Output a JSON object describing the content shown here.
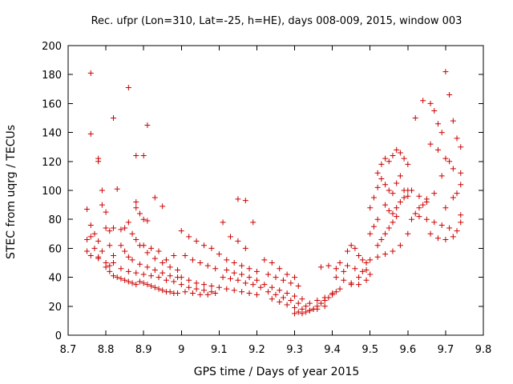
{
  "chart_data": {
    "type": "scatter",
    "title": "Rec. ufpr (Lon=310, Lat=-25, h=HE), days 008-009, 2015, window 003",
    "xlabel": "GPS time / Days of year 2015",
    "ylabel": "STEC from uqrg / TECUs",
    "xlim": [
      8.7,
      9.8
    ],
    "ylim": [
      0,
      200
    ],
    "xticks": [
      "8.7",
      "8.8",
      "8.9",
      "9",
      "9.1",
      "9.2",
      "9.3",
      "9.4",
      "9.5",
      "9.6",
      "9.7",
      "9.8"
    ],
    "yticks": [
      "0",
      "20",
      "40",
      "60",
      "80",
      "100",
      "120",
      "140",
      "160",
      "180",
      "200"
    ],
    "grid": false,
    "marker": "+",
    "color": "#cc0000",
    "points": [
      [
        8.76,
        181
      ],
      [
        8.76,
        139
      ],
      [
        8.78,
        122
      ],
      [
        8.78,
        120
      ],
      [
        8.82,
        150
      ],
      [
        8.86,
        171
      ],
      [
        8.88,
        124
      ],
      [
        8.9,
        124
      ],
      [
        8.91,
        145
      ],
      [
        8.75,
        87
      ],
      [
        8.76,
        76
      ],
      [
        8.77,
        70
      ],
      [
        8.78,
        65
      ],
      [
        8.79,
        90
      ],
      [
        8.79,
        100
      ],
      [
        8.8,
        85
      ],
      [
        8.8,
        74
      ],
      [
        8.81,
        72
      ],
      [
        8.81,
        62
      ],
      [
        8.82,
        74
      ],
      [
        8.83,
        101
      ],
      [
        8.84,
        73
      ],
      [
        8.85,
        74
      ],
      [
        8.86,
        78
      ],
      [
        8.88,
        92
      ],
      [
        8.88,
        88
      ],
      [
        8.89,
        84
      ],
      [
        8.9,
        80
      ],
      [
        8.91,
        79
      ],
      [
        8.93,
        95
      ],
      [
        8.95,
        89
      ],
      [
        8.75,
        66
      ],
      [
        8.76,
        68
      ],
      [
        8.77,
        60
      ],
      [
        8.78,
        54
      ],
      [
        8.79,
        58
      ],
      [
        8.8,
        50
      ],
      [
        8.81,
        48
      ],
      [
        8.82,
        55
      ],
      [
        8.84,
        62
      ],
      [
        8.85,
        58
      ],
      [
        8.86,
        54
      ],
      [
        8.87,
        70
      ],
      [
        8.88,
        66
      ],
      [
        8.9,
        62
      ],
      [
        8.92,
        60
      ],
      [
        8.94,
        58
      ],
      [
        8.96,
        52
      ],
      [
        8.98,
        55
      ],
      [
        8.75,
        58
      ],
      [
        8.76,
        55
      ],
      [
        8.78,
        53
      ],
      [
        8.8,
        47
      ],
      [
        8.81,
        44
      ],
      [
        8.82,
        41
      ],
      [
        8.83,
        40
      ],
      [
        8.84,
        39
      ],
      [
        8.85,
        38
      ],
      [
        8.86,
        37
      ],
      [
        8.87,
        36
      ],
      [
        8.88,
        35
      ],
      [
        8.89,
        37
      ],
      [
        8.9,
        36
      ],
      [
        8.91,
        35
      ],
      [
        8.92,
        34
      ],
      [
        8.93,
        33
      ],
      [
        8.94,
        32
      ],
      [
        8.95,
        31
      ],
      [
        8.96,
        30
      ],
      [
        8.97,
        30
      ],
      [
        8.98,
        29
      ],
      [
        8.99,
        29
      ],
      [
        8.82,
        50
      ],
      [
        8.84,
        46
      ],
      [
        8.86,
        44
      ],
      [
        8.88,
        43
      ],
      [
        8.9,
        42
      ],
      [
        8.92,
        41
      ],
      [
        8.94,
        40
      ],
      [
        8.96,
        38
      ],
      [
        8.98,
        37
      ],
      [
        8.87,
        52
      ],
      [
        8.89,
        49
      ],
      [
        8.91,
        47
      ],
      [
        8.93,
        45
      ],
      [
        8.95,
        43
      ],
      [
        8.97,
        41
      ],
      [
        8.99,
        40
      ],
      [
        8.89,
        62
      ],
      [
        8.91,
        57
      ],
      [
        8.93,
        53
      ],
      [
        8.95,
        50
      ],
      [
        8.97,
        47
      ],
      [
        8.99,
        45
      ],
      [
        9.0,
        72
      ],
      [
        9.02,
        68
      ],
      [
        9.04,
        65
      ],
      [
        9.06,
        62
      ],
      [
        9.08,
        60
      ],
      [
        9.01,
        55
      ],
      [
        9.03,
        52
      ],
      [
        9.05,
        50
      ],
      [
        9.07,
        48
      ],
      [
        9.09,
        46
      ],
      [
        9.0,
        40
      ],
      [
        9.02,
        38
      ],
      [
        9.04,
        36
      ],
      [
        9.06,
        35
      ],
      [
        9.08,
        34
      ],
      [
        9.1,
        33
      ],
      [
        9.12,
        32
      ],
      [
        9.14,
        31
      ],
      [
        9.16,
        30
      ],
      [
        9.18,
        29
      ],
      [
        9.2,
        28
      ],
      [
        9.0,
        35
      ],
      [
        9.02,
        33
      ],
      [
        9.04,
        32
      ],
      [
        9.06,
        31
      ],
      [
        9.08,
        30
      ],
      [
        9.01,
        30
      ],
      [
        9.03,
        29
      ],
      [
        9.05,
        28
      ],
      [
        9.07,
        28
      ],
      [
        9.09,
        29
      ],
      [
        9.11,
        78
      ],
      [
        9.13,
        68
      ],
      [
        9.15,
        65
      ],
      [
        9.17,
        60
      ],
      [
        9.15,
        94
      ],
      [
        9.17,
        93
      ],
      [
        9.19,
        78
      ],
      [
        9.12,
        45
      ],
      [
        9.14,
        43
      ],
      [
        9.16,
        42
      ],
      [
        9.18,
        40
      ],
      [
        9.2,
        38
      ],
      [
        9.11,
        40
      ],
      [
        9.13,
        39
      ],
      [
        9.15,
        38
      ],
      [
        9.17,
        36
      ],
      [
        9.19,
        35
      ],
      [
        9.21,
        33
      ],
      [
        9.1,
        56
      ],
      [
        9.12,
        52
      ],
      [
        9.14,
        50
      ],
      [
        9.16,
        48
      ],
      [
        9.18,
        46
      ],
      [
        9.2,
        44
      ],
      [
        9.22,
        52
      ],
      [
        9.24,
        50
      ],
      [
        9.26,
        46
      ],
      [
        9.28,
        42
      ],
      [
        9.3,
        40
      ],
      [
        9.23,
        42
      ],
      [
        9.25,
        40
      ],
      [
        9.27,
        38
      ],
      [
        9.29,
        36
      ],
      [
        9.31,
        34
      ],
      [
        9.22,
        35
      ],
      [
        9.24,
        33
      ],
      [
        9.26,
        31
      ],
      [
        9.28,
        29
      ],
      [
        9.3,
        27
      ],
      [
        9.32,
        25
      ],
      [
        9.23,
        30
      ],
      [
        9.25,
        28
      ],
      [
        9.27,
        26
      ],
      [
        9.29,
        24
      ],
      [
        9.31,
        22
      ],
      [
        9.33,
        20
      ],
      [
        9.35,
        18
      ],
      [
        9.24,
        25
      ],
      [
        9.26,
        23
      ],
      [
        9.28,
        21
      ],
      [
        9.3,
        19
      ],
      [
        9.32,
        18
      ],
      [
        9.34,
        17
      ],
      [
        9.36,
        18
      ],
      [
        9.38,
        20
      ],
      [
        9.3,
        15
      ],
      [
        9.31,
        16
      ],
      [
        9.32,
        15
      ],
      [
        9.33,
        16
      ],
      [
        9.34,
        17
      ],
      [
        9.35,
        18
      ],
      [
        9.36,
        20
      ],
      [
        9.37,
        22
      ],
      [
        9.38,
        24
      ],
      [
        9.39,
        26
      ],
      [
        9.4,
        28
      ],
      [
        9.41,
        30
      ],
      [
        9.34,
        22
      ],
      [
        9.36,
        24
      ],
      [
        9.38,
        26
      ],
      [
        9.4,
        29
      ],
      [
        9.42,
        32
      ],
      [
        9.37,
        47
      ],
      [
        9.39,
        48
      ],
      [
        9.41,
        46
      ],
      [
        9.43,
        44
      ],
      [
        9.44,
        58
      ],
      [
        9.45,
        62
      ],
      [
        9.46,
        60
      ],
      [
        9.47,
        55
      ],
      [
        9.48,
        52
      ],
      [
        9.49,
        50
      ],
      [
        9.41,
        40
      ],
      [
        9.43,
        38
      ],
      [
        9.45,
        36
      ],
      [
        9.47,
        35
      ],
      [
        9.49,
        38
      ],
      [
        9.42,
        50
      ],
      [
        9.44,
        48
      ],
      [
        9.46,
        46
      ],
      [
        9.48,
        44
      ],
      [
        9.5,
        42
      ],
      [
        9.45,
        35
      ],
      [
        9.47,
        40
      ],
      [
        9.49,
        45
      ],
      [
        9.5,
        70
      ],
      [
        9.51,
        75
      ],
      [
        9.52,
        80
      ],
      [
        9.5,
        88
      ],
      [
        9.51,
        95
      ],
      [
        9.52,
        102
      ],
      [
        9.52,
        112
      ],
      [
        9.53,
        118
      ],
      [
        9.54,
        122
      ],
      [
        9.55,
        120
      ],
      [
        9.56,
        124
      ],
      [
        9.57,
        128
      ],
      [
        9.58,
        126
      ],
      [
        9.59,
        122
      ],
      [
        9.6,
        118
      ],
      [
        9.53,
        108
      ],
      [
        9.54,
        104
      ],
      [
        9.55,
        100
      ],
      [
        9.56,
        98
      ],
      [
        9.57,
        105
      ],
      [
        9.58,
        110
      ],
      [
        9.59,
        100
      ],
      [
        9.6,
        96
      ],
      [
        9.54,
        90
      ],
      [
        9.55,
        86
      ],
      [
        9.56,
        84
      ],
      [
        9.57,
        88
      ],
      [
        9.58,
        92
      ],
      [
        9.59,
        95
      ],
      [
        9.6,
        100
      ],
      [
        9.52,
        62
      ],
      [
        9.53,
        66
      ],
      [
        9.54,
        70
      ],
      [
        9.55,
        74
      ],
      [
        9.56,
        78
      ],
      [
        9.57,
        82
      ],
      [
        9.5,
        52
      ],
      [
        9.52,
        54
      ],
      [
        9.54,
        56
      ],
      [
        9.56,
        58
      ],
      [
        9.58,
        62
      ],
      [
        9.6,
        70
      ],
      [
        9.61,
        80
      ],
      [
        9.62,
        84
      ],
      [
        9.63,
        88
      ],
      [
        9.64,
        90
      ],
      [
        9.65,
        92
      ],
      [
        9.62,
        150
      ],
      [
        9.64,
        162
      ],
      [
        9.66,
        160
      ],
      [
        9.67,
        155
      ],
      [
        9.68,
        146
      ],
      [
        9.69,
        140
      ],
      [
        9.7,
        182
      ],
      [
        9.71,
        166
      ],
      [
        9.72,
        148
      ],
      [
        9.73,
        136
      ],
      [
        9.74,
        130
      ],
      [
        9.66,
        132
      ],
      [
        9.68,
        128
      ],
      [
        9.7,
        122
      ],
      [
        9.72,
        115
      ],
      [
        9.74,
        104
      ],
      [
        9.61,
        100
      ],
      [
        9.63,
        96
      ],
      [
        9.65,
        94
      ],
      [
        9.67,
        98
      ],
      [
        9.69,
        110
      ],
      [
        9.71,
        120
      ],
      [
        9.73,
        98
      ],
      [
        9.63,
        82
      ],
      [
        9.65,
        80
      ],
      [
        9.67,
        78
      ],
      [
        9.69,
        76
      ],
      [
        9.71,
        74
      ],
      [
        9.73,
        72
      ],
      [
        9.66,
        70
      ],
      [
        9.68,
        67
      ],
      [
        9.7,
        66
      ],
      [
        9.72,
        68
      ],
      [
        9.74,
        78
      ],
      [
        9.74,
        83
      ],
      [
        9.7,
        88
      ],
      [
        9.72,
        95
      ],
      [
        9.74,
        112
      ]
    ]
  }
}
